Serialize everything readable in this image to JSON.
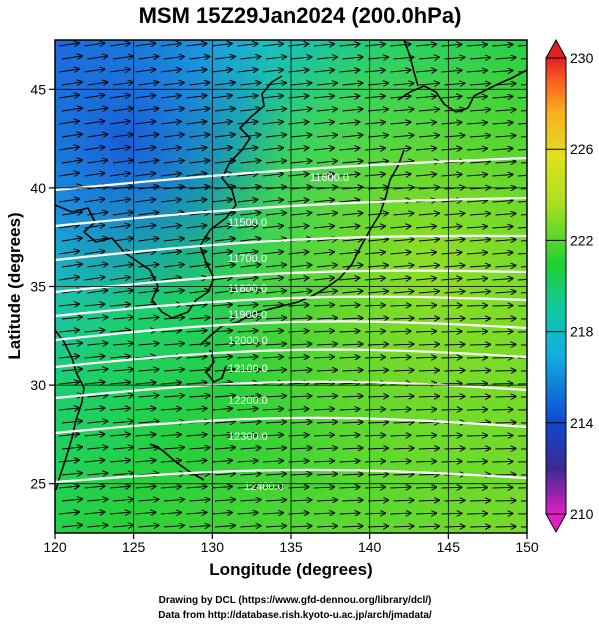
{
  "title": "MSM 15Z29Jan2024 (200.0hPa)",
  "x_axis": {
    "label": "Longitude (degrees)",
    "range": [
      120,
      150
    ],
    "ticks": [
      120,
      125,
      130,
      135,
      140,
      145,
      150
    ],
    "tick_labels": [
      "120",
      "125",
      "130",
      "135",
      "140",
      "145",
      "150"
    ]
  },
  "y_axis": {
    "label": "Latitude  (degrees)",
    "range": [
      22.5,
      47.5
    ],
    "ticks": [
      25,
      30,
      35,
      40,
      45
    ],
    "tick_labels": [
      "25",
      "30",
      "35",
      "40",
      "45"
    ]
  },
  "colorbar": {
    "range": [
      210,
      230
    ],
    "tick_labels": [
      "230",
      "226",
      "222",
      "218",
      "214",
      "210"
    ],
    "colors": [
      "#e020c0",
      "#3a2a90",
      "#1048d0",
      "#10b0e0",
      "#10c8a0",
      "#20d030",
      "#a8e020",
      "#e0e020",
      "#f8b020",
      "#f86020",
      "#e02020"
    ]
  },
  "contours": {
    "color": "#ffffff",
    "labels": [
      "11600.0",
      "11500.0",
      "11700.0",
      "11800.0",
      "11900.0",
      "12000.0",
      "12100.0",
      "12200.0",
      "12300.0",
      "12400.0"
    ]
  },
  "credits": [
    "Drawing by DCL (https://www.gfd-dennou.org/library/dcl/)",
    "Data from http://database.rish.kyoto-u.ac.jp/arch/jmadata/"
  ]
}
